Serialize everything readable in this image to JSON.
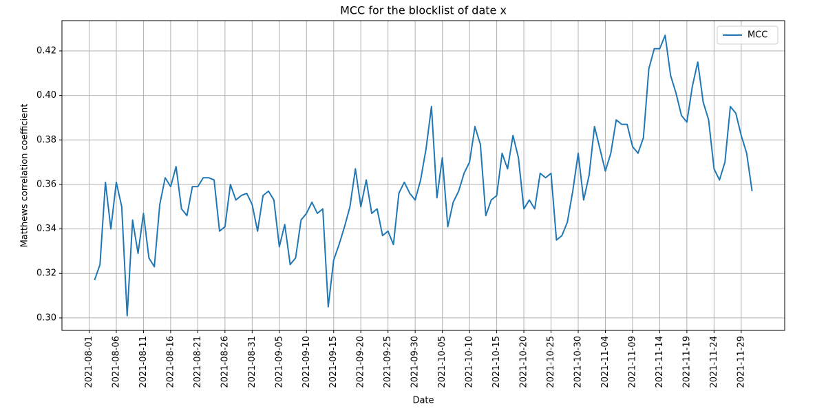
{
  "chart_data": {
    "type": "line",
    "title": "MCC for the blocklist of date x",
    "xlabel": "Date",
    "ylabel": "Matthews correlation coefficient",
    "x": [
      "2021-08-02",
      "2021-08-03",
      "2021-08-04",
      "2021-08-05",
      "2021-08-06",
      "2021-08-07",
      "2021-08-08",
      "2021-08-09",
      "2021-08-10",
      "2021-08-11",
      "2021-08-12",
      "2021-08-13",
      "2021-08-14",
      "2021-08-15",
      "2021-08-16",
      "2021-08-17",
      "2021-08-18",
      "2021-08-19",
      "2021-08-20",
      "2021-08-21",
      "2021-08-22",
      "2021-08-23",
      "2021-08-24",
      "2021-08-25",
      "2021-08-26",
      "2021-08-27",
      "2021-08-28",
      "2021-08-29",
      "2021-08-30",
      "2021-08-31",
      "2021-09-01",
      "2021-09-02",
      "2021-09-03",
      "2021-09-04",
      "2021-09-05",
      "2021-09-06",
      "2021-09-07",
      "2021-09-08",
      "2021-09-09",
      "2021-09-10",
      "2021-09-11",
      "2021-09-12",
      "2021-09-13",
      "2021-09-14",
      "2021-09-15",
      "2021-09-16",
      "2021-09-17",
      "2021-09-18",
      "2021-09-19",
      "2021-09-20",
      "2021-09-21",
      "2021-09-22",
      "2021-09-23",
      "2021-09-24",
      "2021-09-25",
      "2021-09-26",
      "2021-09-27",
      "2021-09-28",
      "2021-09-29",
      "2021-09-30",
      "2021-10-01",
      "2021-10-02",
      "2021-10-03",
      "2021-10-04",
      "2021-10-05",
      "2021-10-06",
      "2021-10-07",
      "2021-10-08",
      "2021-10-09",
      "2021-10-10",
      "2021-10-11",
      "2021-10-12",
      "2021-10-13",
      "2021-10-14",
      "2021-10-15",
      "2021-10-16",
      "2021-10-17",
      "2021-10-18",
      "2021-10-19",
      "2021-10-20",
      "2021-10-21",
      "2021-10-22",
      "2021-10-23",
      "2021-10-24",
      "2021-10-25",
      "2021-10-26",
      "2021-10-27",
      "2021-10-28",
      "2021-10-29",
      "2021-10-30",
      "2021-10-31",
      "2021-11-01",
      "2021-11-02",
      "2021-11-03",
      "2021-11-04",
      "2021-11-05",
      "2021-11-06",
      "2021-11-07",
      "2021-11-08",
      "2021-11-09",
      "2021-11-10",
      "2021-11-11",
      "2021-11-12",
      "2021-11-13",
      "2021-11-14",
      "2021-11-15",
      "2021-11-16",
      "2021-11-17",
      "2021-11-18",
      "2021-11-19",
      "2021-11-20",
      "2021-11-21",
      "2021-11-22",
      "2021-11-23",
      "2021-11-24",
      "2021-11-25",
      "2021-11-26",
      "2021-11-27",
      "2021-11-28",
      "2021-11-29",
      "2021-11-30",
      "2021-12-01"
    ],
    "series": [
      {
        "name": "MCC",
        "color": "#1f77b4",
        "values": [
          0.317,
          0.324,
          0.361,
          0.34,
          0.361,
          0.35,
          0.301,
          0.344,
          0.329,
          0.347,
          0.327,
          0.323,
          0.351,
          0.363,
          0.359,
          0.368,
          0.349,
          0.346,
          0.359,
          0.359,
          0.363,
          0.363,
          0.362,
          0.339,
          0.341,
          0.36,
          0.353,
          0.355,
          0.356,
          0.351,
          0.339,
          0.355,
          0.357,
          0.353,
          0.332,
          0.342,
          0.324,
          0.327,
          0.344,
          0.347,
          0.352,
          0.347,
          0.349,
          0.305,
          0.326,
          0.333,
          0.341,
          0.35,
          0.367,
          0.35,
          0.362,
          0.347,
          0.349,
          0.337,
          0.339,
          0.333,
          0.356,
          0.361,
          0.356,
          0.353,
          0.362,
          0.376,
          0.395,
          0.354,
          0.372,
          0.341,
          0.352,
          0.357,
          0.365,
          0.37,
          0.386,
          0.378,
          0.346,
          0.353,
          0.355,
          0.374,
          0.367,
          0.382,
          0.372,
          0.349,
          0.353,
          0.349,
          0.365,
          0.363,
          0.365,
          0.335,
          0.337,
          0.343,
          0.357,
          0.374,
          0.353,
          0.364,
          0.386,
          0.376,
          0.366,
          0.374,
          0.389,
          0.387,
          0.387,
          0.377,
          0.374,
          0.381,
          0.412,
          0.421,
          0.421,
          0.427,
          0.409,
          0.401,
          0.391,
          0.388,
          0.404,
          0.415,
          0.397,
          0.389,
          0.367,
          0.362,
          0.37,
          0.395,
          0.392,
          0.382,
          0.374,
          0.357
        ]
      }
    ],
    "xlim": [
      "2021-07-27",
      "2021-12-07"
    ],
    "xticks": [
      "2021-08-01",
      "2021-08-06",
      "2021-08-11",
      "2021-08-16",
      "2021-08-21",
      "2021-08-26",
      "2021-08-31",
      "2021-09-05",
      "2021-09-10",
      "2021-09-15",
      "2021-09-20",
      "2021-09-25",
      "2021-09-30",
      "2021-10-05",
      "2021-10-10",
      "2021-10-15",
      "2021-10-20",
      "2021-10-25",
      "2021-10-30",
      "2021-11-04",
      "2021-11-09",
      "2021-11-14",
      "2021-11-19",
      "2021-11-24",
      "2021-11-29"
    ],
    "ylim": [
      0.2944,
      0.4336
    ],
    "yticks": [
      {
        "value": 0.3,
        "label": "0.30"
      },
      0.32,
      0.34,
      0.36,
      0.38,
      {
        "value": 0.4,
        "label": "0.40"
      },
      0.42
    ],
    "grid": true,
    "legend": "upper right"
  }
}
